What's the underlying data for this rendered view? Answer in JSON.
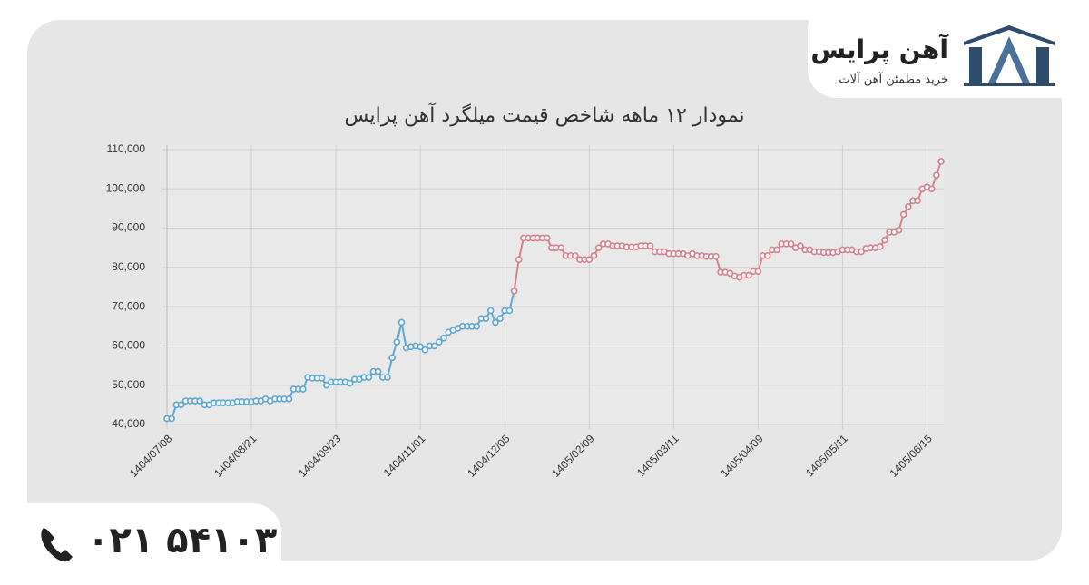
{
  "header": {
    "brand": "آهن پرایس",
    "tagline": "خرید مطمئن آهن آلات"
  },
  "chart_data": {
    "type": "line",
    "title": "نمودار ۱۲ ماهه شاخص قیمت میلگرد آهن پرایس",
    "categories": [
      "1404/07/08",
      null,
      null,
      null,
      null,
      null,
      null,
      null,
      null,
      null,
      null,
      null,
      null,
      null,
      null,
      null,
      null,
      null,
      "1404/08/21",
      null,
      null,
      null,
      null,
      null,
      null,
      null,
      null,
      null,
      null,
      null,
      null,
      null,
      null,
      null,
      null,
      null,
      "1404/09/23",
      null,
      null,
      null,
      null,
      null,
      null,
      null,
      null,
      null,
      null,
      null,
      null,
      null,
      null,
      null,
      null,
      null,
      "1404/11/01",
      null,
      null,
      null,
      null,
      null,
      null,
      null,
      null,
      null,
      null,
      null,
      null,
      null,
      null,
      null,
      null,
      null,
      "1404/12/05",
      null,
      null,
      null,
      null,
      null,
      null,
      null,
      null,
      null,
      null,
      null,
      null,
      null,
      null,
      null,
      null,
      null,
      "1405/02/09",
      null,
      null,
      null,
      null,
      null,
      null,
      null,
      null,
      null,
      null,
      null,
      null,
      null,
      null,
      null,
      null,
      null,
      "1405/03/11",
      null,
      null,
      null,
      null,
      null,
      null,
      null,
      null,
      null,
      null,
      null,
      null,
      null,
      null,
      null,
      null,
      null,
      "1405/04/09",
      null,
      null,
      null,
      null,
      null,
      null,
      null,
      null,
      null,
      null,
      null,
      null,
      null,
      null,
      null,
      null,
      null,
      "1405/05/11",
      null,
      null,
      null,
      null,
      null,
      null,
      null,
      null,
      null,
      null,
      null,
      null,
      null,
      null,
      null,
      null,
      null,
      "1405/06/15",
      null,
      null,
      null
    ],
    "series": [
      {
        "color": "#5ea9d2",
        "values": [
          41500,
          41500,
          45000,
          45000,
          46000,
          46000,
          46000,
          46000,
          45000,
          45000,
          45500,
          45500,
          45500,
          45500,
          45500,
          45800,
          45800,
          45800,
          45800,
          46000,
          46000,
          46500,
          46000,
          46500,
          46500,
          46500,
          46500,
          49000,
          49000,
          49000,
          52000,
          51800,
          51800,
          51800,
          50000,
          50800,
          50800,
          50800,
          50800,
          50500,
          51500,
          51500,
          52000,
          52000,
          53500,
          53500,
          52000,
          52000,
          57000,
          61000,
          66000,
          59500,
          59800,
          60000,
          59800,
          59000,
          60000,
          60000,
          61000,
          62000,
          63500,
          64000,
          64500,
          65000,
          65000,
          65000,
          65000,
          67000,
          67000,
          69000,
          66000,
          67000,
          69000,
          69000,
          74000,
          null,
          null,
          null,
          null,
          null,
          null,
          null,
          null,
          null,
          null,
          null,
          null,
          null,
          null,
          null,
          null,
          null,
          null,
          null,
          null,
          null,
          null,
          null,
          null,
          null,
          null,
          null,
          null,
          null,
          null,
          null,
          null,
          null,
          null,
          null,
          null,
          null,
          null,
          null,
          null,
          null,
          null,
          null,
          null,
          null,
          null,
          null,
          null,
          null,
          null,
          null,
          null,
          null,
          null,
          null,
          null,
          null,
          null,
          null,
          null,
          null,
          null,
          null,
          null,
          null,
          null,
          null,
          null,
          null,
          null,
          null,
          null,
          null,
          null,
          null,
          null,
          null,
          null,
          null,
          null,
          null,
          null,
          null,
          null,
          null,
          null,
          null,
          null,
          null,
          null,
          null
        ]
      },
      {
        "color": "#d4838f",
        "values": [
          null,
          null,
          null,
          null,
          null,
          null,
          null,
          null,
          null,
          null,
          null,
          null,
          null,
          null,
          null,
          null,
          null,
          null,
          null,
          null,
          null,
          null,
          null,
          null,
          null,
          null,
          null,
          null,
          null,
          null,
          null,
          null,
          null,
          null,
          null,
          null,
          null,
          null,
          null,
          null,
          null,
          null,
          null,
          null,
          null,
          null,
          null,
          null,
          null,
          null,
          null,
          null,
          null,
          null,
          null,
          null,
          null,
          null,
          null,
          null,
          null,
          null,
          null,
          null,
          null,
          null,
          null,
          null,
          null,
          null,
          null,
          null,
          null,
          null,
          74000,
          82000,
          87500,
          87500,
          87500,
          87500,
          87500,
          87500,
          85000,
          85000,
          85000,
          83000,
          83000,
          83000,
          82000,
          82000,
          82000,
          83000,
          85000,
          86000,
          86000,
          85500,
          85500,
          85500,
          85200,
          85200,
          85200,
          85500,
          85500,
          85500,
          84000,
          84000,
          84000,
          83500,
          83500,
          83500,
          83500,
          83000,
          83500,
          83000,
          83000,
          82800,
          82800,
          82800,
          78800,
          78800,
          78500,
          77800,
          77500,
          78000,
          78000,
          79000,
          79000,
          83000,
          83000,
          84500,
          84500,
          86000,
          86000,
          86000,
          85000,
          85500,
          84500,
          84500,
          84000,
          84000,
          83800,
          83800,
          83800,
          84000,
          84500,
          84500,
          84500,
          84000,
          84000,
          84800,
          85000,
          85000,
          85300,
          87000,
          89000,
          89000,
          89500,
          93500,
          95500,
          97000,
          97000,
          100000,
          100500,
          100000,
          103500,
          107000
        ]
      }
    ],
    "ylim": [
      40000,
      110000
    ],
    "yticks": [
      {
        "value": 40000,
        "label": "40,000"
      },
      {
        "value": 50000,
        "label": "50,000"
      },
      {
        "value": 60000,
        "label": "60,000"
      },
      {
        "value": 70000,
        "label": "70,000"
      },
      {
        "value": 80000,
        "label": "80,000"
      },
      {
        "value": 90000,
        "label": "90,000"
      },
      {
        "value": 100000,
        "label": "100,000"
      },
      {
        "value": 110000,
        "label": "110,000"
      }
    ],
    "grid": true
  },
  "footer": {
    "phone": "۰۲۱ ۵۴۱۰۳"
  }
}
